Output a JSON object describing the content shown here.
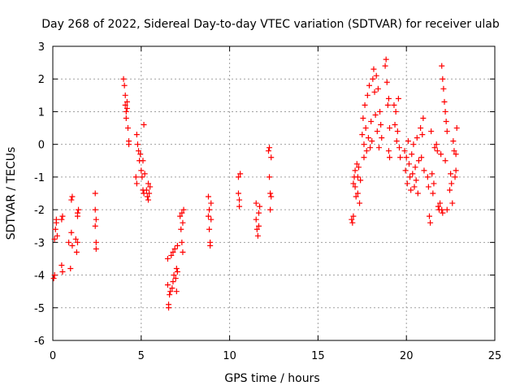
{
  "chart_data": {
    "type": "scatter",
    "title": "Day 268 of 2022, Sidereal Day-to-day VTEC variation (SDTVAR) for receiver ulab",
    "xlabel": "GPS time / hours",
    "ylabel": "SDTVAR / TECUs",
    "xlim": [
      0,
      25
    ],
    "ylim": [
      -6,
      3
    ],
    "xticks": [
      0,
      5,
      10,
      15,
      20,
      25
    ],
    "yticks": [
      -6,
      -5,
      -4,
      -3,
      -2,
      -1,
      0,
      1,
      2,
      3
    ],
    "grid": true,
    "marker": "plus",
    "color": "#ff0000",
    "series": [
      {
        "name": "SDTVAR",
        "points": [
          [
            0.05,
            -4.1
          ],
          [
            0.1,
            -4.0
          ],
          [
            0.1,
            -2.9
          ],
          [
            0.15,
            -2.6
          ],
          [
            0.2,
            -2.4
          ],
          [
            0.2,
            -2.3
          ],
          [
            0.25,
            -2.8
          ],
          [
            0.5,
            -2.3
          ],
          [
            0.5,
            -3.7
          ],
          [
            0.55,
            -3.9
          ],
          [
            0.55,
            -2.2
          ],
          [
            0.9,
            -3.0
          ],
          [
            1.0,
            -3.8
          ],
          [
            1.05,
            -2.7
          ],
          [
            1.05,
            -1.7
          ],
          [
            1.1,
            -1.6
          ],
          [
            1.1,
            -3.1
          ],
          [
            1.3,
            -2.9
          ],
          [
            1.35,
            -3.3
          ],
          [
            1.4,
            -2.1
          ],
          [
            1.4,
            -2.2
          ],
          [
            1.45,
            -2.0
          ],
          [
            1.4,
            -3.0
          ],
          [
            2.4,
            -1.5
          ],
          [
            2.4,
            -2.0
          ],
          [
            2.45,
            -2.3
          ],
          [
            2.4,
            -2.5
          ],
          [
            2.45,
            -3.0
          ],
          [
            2.45,
            -3.2
          ],
          [
            4.0,
            2.0
          ],
          [
            4.05,
            1.8
          ],
          [
            4.1,
            1.5
          ],
          [
            4.1,
            1.2
          ],
          [
            4.15,
            1.0
          ],
          [
            4.15,
            0.8
          ],
          [
            4.2,
            1.3
          ],
          [
            4.2,
            1.1
          ],
          [
            4.25,
            0.5
          ],
          [
            4.3,
            0.1
          ],
          [
            4.3,
            0.0
          ],
          [
            4.7,
            -1.0
          ],
          [
            4.75,
            -1.2
          ],
          [
            4.75,
            0.3
          ],
          [
            4.8,
            0.0
          ],
          [
            4.85,
            -0.2
          ],
          [
            4.9,
            -0.5
          ],
          [
            4.95,
            -0.3
          ],
          [
            5.0,
            -0.8
          ],
          [
            5.05,
            -1.0
          ],
          [
            5.1,
            -0.5
          ],
          [
            5.1,
            -1.4
          ],
          [
            5.15,
            0.6
          ],
          [
            5.15,
            -1.5
          ],
          [
            5.2,
            -0.9
          ],
          [
            5.3,
            -1.4
          ],
          [
            5.35,
            -1.6
          ],
          [
            5.4,
            -1.2
          ],
          [
            5.4,
            -1.7
          ],
          [
            5.45,
            -1.5
          ],
          [
            5.5,
            -1.3
          ],
          [
            6.5,
            -3.5
          ],
          [
            6.5,
            -4.3
          ],
          [
            6.55,
            -4.9
          ],
          [
            6.55,
            -5.0
          ],
          [
            6.6,
            -4.6
          ],
          [
            6.65,
            -4.5
          ],
          [
            6.7,
            -3.4
          ],
          [
            6.75,
            -4.4
          ],
          [
            6.8,
            -4.2
          ],
          [
            6.8,
            -3.3
          ],
          [
            6.85,
            -4.0
          ],
          [
            6.9,
            -3.2
          ],
          [
            6.95,
            -4.1
          ],
          [
            7.0,
            -3.8
          ],
          [
            7.0,
            -4.5
          ],
          [
            7.05,
            -3.9
          ],
          [
            7.05,
            -3.1
          ],
          [
            7.2,
            -2.2
          ],
          [
            7.25,
            -2.6
          ],
          [
            7.3,
            -2.1
          ],
          [
            7.3,
            -3.0
          ],
          [
            7.35,
            -2.4
          ],
          [
            7.4,
            -2.0
          ],
          [
            7.35,
            -3.3
          ],
          [
            8.8,
            -1.6
          ],
          [
            8.8,
            -2.2
          ],
          [
            8.85,
            -2.0
          ],
          [
            8.85,
            -2.6
          ],
          [
            8.9,
            -3.0
          ],
          [
            8.9,
            -3.1
          ],
          [
            8.95,
            -1.8
          ],
          [
            8.95,
            -2.3
          ],
          [
            10.5,
            -1.0
          ],
          [
            10.5,
            -1.5
          ],
          [
            10.55,
            -1.9
          ],
          [
            10.6,
            -0.9
          ],
          [
            10.55,
            -1.7
          ],
          [
            11.5,
            -1.8
          ],
          [
            11.5,
            -2.3
          ],
          [
            11.55,
            -2.6
          ],
          [
            11.6,
            -2.8
          ],
          [
            11.65,
            -2.1
          ],
          [
            11.7,
            -1.9
          ],
          [
            11.65,
            -2.5
          ],
          [
            12.2,
            -0.2
          ],
          [
            12.25,
            -0.1
          ],
          [
            12.25,
            -1.0
          ],
          [
            12.3,
            -1.5
          ],
          [
            12.3,
            -2.0
          ],
          [
            12.35,
            -0.4
          ],
          [
            12.35,
            -1.6
          ],
          [
            16.9,
            -2.3
          ],
          [
            16.95,
            -2.4
          ],
          [
            17.0,
            -1.2
          ],
          [
            17.0,
            -2.2
          ],
          [
            17.05,
            -1.0
          ],
          [
            17.1,
            -0.8
          ],
          [
            17.1,
            -1.3
          ],
          [
            17.15,
            -1.6
          ],
          [
            17.2,
            -0.6
          ],
          [
            17.25,
            -1.0
          ],
          [
            17.25,
            -1.5
          ],
          [
            17.3,
            -0.7
          ],
          [
            17.35,
            -1.8
          ],
          [
            17.4,
            -1.1
          ],
          [
            17.5,
            0.3
          ],
          [
            17.55,
            0.8
          ],
          [
            17.6,
            0.0
          ],
          [
            17.6,
            -0.4
          ],
          [
            17.65,
            1.2
          ],
          [
            17.7,
            0.5
          ],
          [
            17.75,
            -0.2
          ],
          [
            17.8,
            1.5
          ],
          [
            17.85,
            0.2
          ],
          [
            17.9,
            1.8
          ],
          [
            17.95,
            -0.1
          ],
          [
            18.0,
            0.7
          ],
          [
            18.05,
            0.1
          ],
          [
            18.1,
            2.0
          ],
          [
            18.15,
            2.3
          ],
          [
            18.2,
            1.6
          ],
          [
            18.25,
            0.9
          ],
          [
            18.3,
            2.1
          ],
          [
            18.35,
            0.4
          ],
          [
            18.4,
            1.7
          ],
          [
            18.45,
            -0.1
          ],
          [
            18.5,
            1.0
          ],
          [
            18.55,
            0.6
          ],
          [
            18.6,
            0.2
          ],
          [
            18.8,
            2.4
          ],
          [
            18.85,
            2.6
          ],
          [
            18.9,
            1.9
          ],
          [
            18.95,
            1.2
          ],
          [
            19.0,
            1.4
          ],
          [
            19.05,
            0.5
          ],
          [
            19.0,
            -0.2
          ],
          [
            19.05,
            -0.4
          ],
          [
            19.3,
            1.2
          ],
          [
            19.35,
            0.6
          ],
          [
            19.4,
            1.0
          ],
          [
            19.45,
            0.1
          ],
          [
            19.5,
            0.4
          ],
          [
            19.55,
            1.4
          ],
          [
            19.6,
            -0.1
          ],
          [
            19.65,
            -0.4
          ],
          [
            19.9,
            -0.2
          ],
          [
            19.95,
            -0.8
          ],
          [
            20.0,
            -0.4
          ],
          [
            20.05,
            -1.2
          ],
          [
            20.1,
            0.1
          ],
          [
            20.15,
            -0.6
          ],
          [
            20.2,
            -1.0
          ],
          [
            20.25,
            -1.4
          ],
          [
            20.3,
            -0.3
          ],
          [
            20.35,
            -0.9
          ],
          [
            20.4,
            0.0
          ],
          [
            20.45,
            -1.3
          ],
          [
            20.5,
            -0.7
          ],
          [
            20.55,
            -1.1
          ],
          [
            20.6,
            0.2
          ],
          [
            20.65,
            -1.5
          ],
          [
            20.7,
            -0.5
          ],
          [
            20.8,
            0.5
          ],
          [
            20.85,
            -0.4
          ],
          [
            20.9,
            0.3
          ],
          [
            20.95,
            0.8
          ],
          [
            21.0,
            -0.8
          ],
          [
            21.2,
            -1.0
          ],
          [
            21.25,
            -1.3
          ],
          [
            21.3,
            -2.2
          ],
          [
            21.35,
            -2.4
          ],
          [
            21.4,
            0.4
          ],
          [
            21.45,
            -0.9
          ],
          [
            21.5,
            -1.5
          ],
          [
            21.55,
            -1.2
          ],
          [
            21.6,
            -0.1
          ],
          [
            21.7,
            0.0
          ],
          [
            21.75,
            -0.2
          ],
          [
            21.8,
            -1.9
          ],
          [
            21.85,
            -2.0
          ],
          [
            21.9,
            -1.8
          ],
          [
            21.95,
            -0.3
          ],
          [
            22.0,
            -2.0
          ],
          [
            22.05,
            -2.1
          ],
          [
            22.0,
            2.4
          ],
          [
            22.05,
            2.0
          ],
          [
            22.1,
            1.7
          ],
          [
            22.15,
            1.3
          ],
          [
            22.2,
            1.0
          ],
          [
            22.25,
            0.7
          ],
          [
            22.3,
            0.4
          ],
          [
            22.2,
            -0.5
          ],
          [
            22.3,
            -2.0
          ],
          [
            22.45,
            -1.4
          ],
          [
            22.5,
            -0.9
          ],
          [
            22.55,
            -1.2
          ],
          [
            22.6,
            -1.8
          ],
          [
            22.65,
            0.1
          ],
          [
            22.7,
            -0.2
          ],
          [
            22.75,
            -1.0
          ],
          [
            22.8,
            -0.3
          ],
          [
            22.85,
            0.5
          ],
          [
            22.8,
            -0.8
          ]
        ]
      }
    ]
  }
}
